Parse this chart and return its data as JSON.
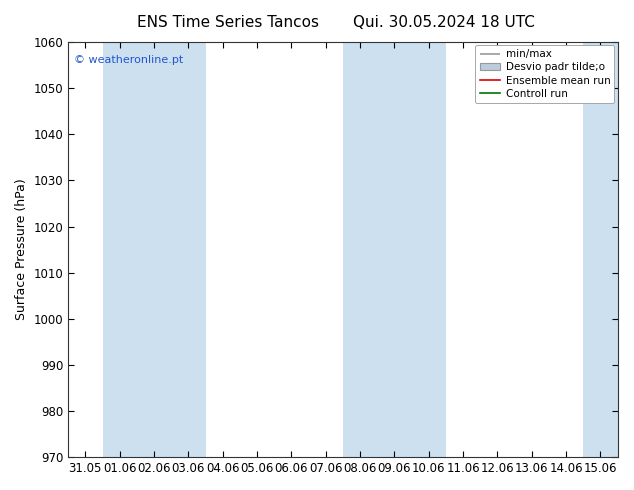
{
  "title_left": "ENS Time Series Tancos",
  "title_right": "Qui. 30.05.2024 18 UTC",
  "ylabel": "Surface Pressure (hPa)",
  "ylim": [
    970,
    1060
  ],
  "yticks": [
    970,
    980,
    990,
    1000,
    1010,
    1020,
    1030,
    1040,
    1050,
    1060
  ],
  "x_labels": [
    "31.05",
    "01.06",
    "02.06",
    "03.06",
    "04.06",
    "05.06",
    "06.06",
    "07.06",
    "08.06",
    "09.06",
    "10.06",
    "11.06",
    "12.06",
    "13.06",
    "14.06",
    "15.06"
  ],
  "watermark": "© weatheronline.pt",
  "legend_labels": [
    "min/max",
    "Desvio padr tilde;o",
    "Ensemble mean run",
    "Controll run"
  ],
  "shaded_ranges": [
    [
      0.5,
      3.5
    ],
    [
      7.5,
      10.5
    ],
    [
      14.5,
      15.5
    ]
  ],
  "shaded_color": "#cce0f0",
  "background_color": "#ffffff",
  "minmax_color": "#999999",
  "std_fill_color": "#bbccdd",
  "std_edge_color": "#999999",
  "mean_color": "#dd0000",
  "control_color": "#007700",
  "title_fontsize": 11,
  "ylabel_fontsize": 9,
  "tick_fontsize": 8.5,
  "legend_fontsize": 7.5,
  "watermark_color": "#2255cc"
}
